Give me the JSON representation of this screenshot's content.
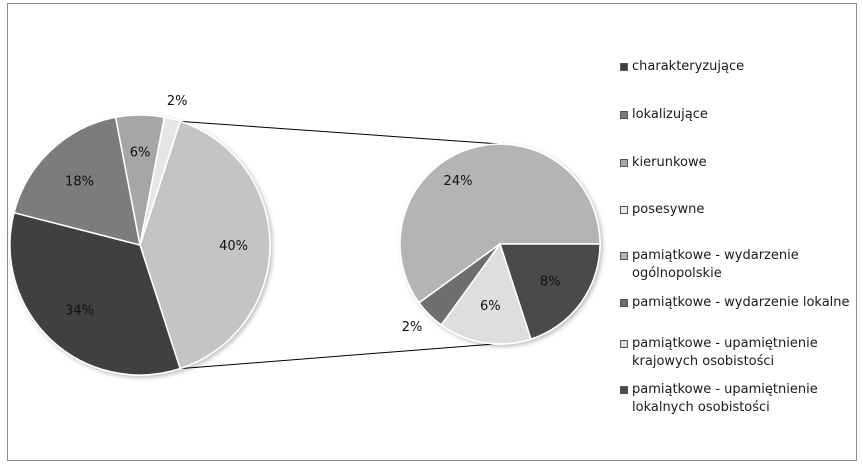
{
  "chart_data": {
    "type": "bar-of-pie",
    "title": "",
    "categories": [
      "charakteryzujące",
      "lokalizujące",
      "kierunkowe",
      "posesywne",
      "pamiątkowe - wydarzenie ogólnopolskie",
      "pamiątkowe - wydarzenie lokalne",
      "pamiątkowe - upamiętnienie krajowych osobistości",
      "pamiątkowe - upamiętnienie lokalnych osobistości"
    ],
    "main_pie": {
      "slices": [
        {
          "category": "pamiątkowe (pie of pie)",
          "value": 40,
          "label": "40%",
          "color": "#c4c4c4"
        },
        {
          "category": "charakteryzujące",
          "value": 34,
          "label": "34%",
          "color": "#3f3f3f"
        },
        {
          "category": "lokalizujące",
          "value": 18,
          "label": "18%",
          "color": "#7c7c7c"
        },
        {
          "category": "kierunkowe",
          "value": 6,
          "label": "6%",
          "color": "#a6a6a6"
        },
        {
          "category": "posesywne",
          "value": 2,
          "label": "2%",
          "color": "#e6e6e6"
        }
      ]
    },
    "secondary_pie": {
      "slices": [
        {
          "category": "pamiątkowe - wydarzenie ogólnopolskie",
          "value": 24,
          "label": "24%",
          "color": "#b4b4b4"
        },
        {
          "category": "pamiątkowe - upamiętnienie lokalnych osobistości",
          "value": 8,
          "label": "8%",
          "color": "#4a4a4a"
        },
        {
          "category": "pamiątkowe - upamiętnienie krajowych osobistości",
          "value": 6,
          "label": "6%",
          "color": "#dedede"
        },
        {
          "category": "pamiątkowe - wydarzenie lokalne",
          "value": 2,
          "label": "2%",
          "color": "#6e6e6e"
        }
      ]
    },
    "legend": {
      "placement": "right",
      "items": [
        {
          "label": "charakteryzujące",
          "color": "#3f3f3f"
        },
        {
          "label": "lokalizujące",
          "color": "#7c7c7c"
        },
        {
          "label": "kierunkowe",
          "color": "#a6a6a6"
        },
        {
          "label": "posesywne",
          "color": "#e6e6e6"
        },
        {
          "label": "pamiątkowe - wydarzenie ogólnopolskie",
          "color": "#b4b4b4"
        },
        {
          "label": "pamiątkowe - wydarzenie lokalne",
          "color": "#6e6e6e"
        },
        {
          "label": "pamiątkowe - upamiętnienie krajowych osobistości",
          "color": "#dedede"
        },
        {
          "label": "pamiątkowe - upamiętnienie lokalnych osobistości",
          "color": "#4a4a4a"
        }
      ]
    }
  }
}
